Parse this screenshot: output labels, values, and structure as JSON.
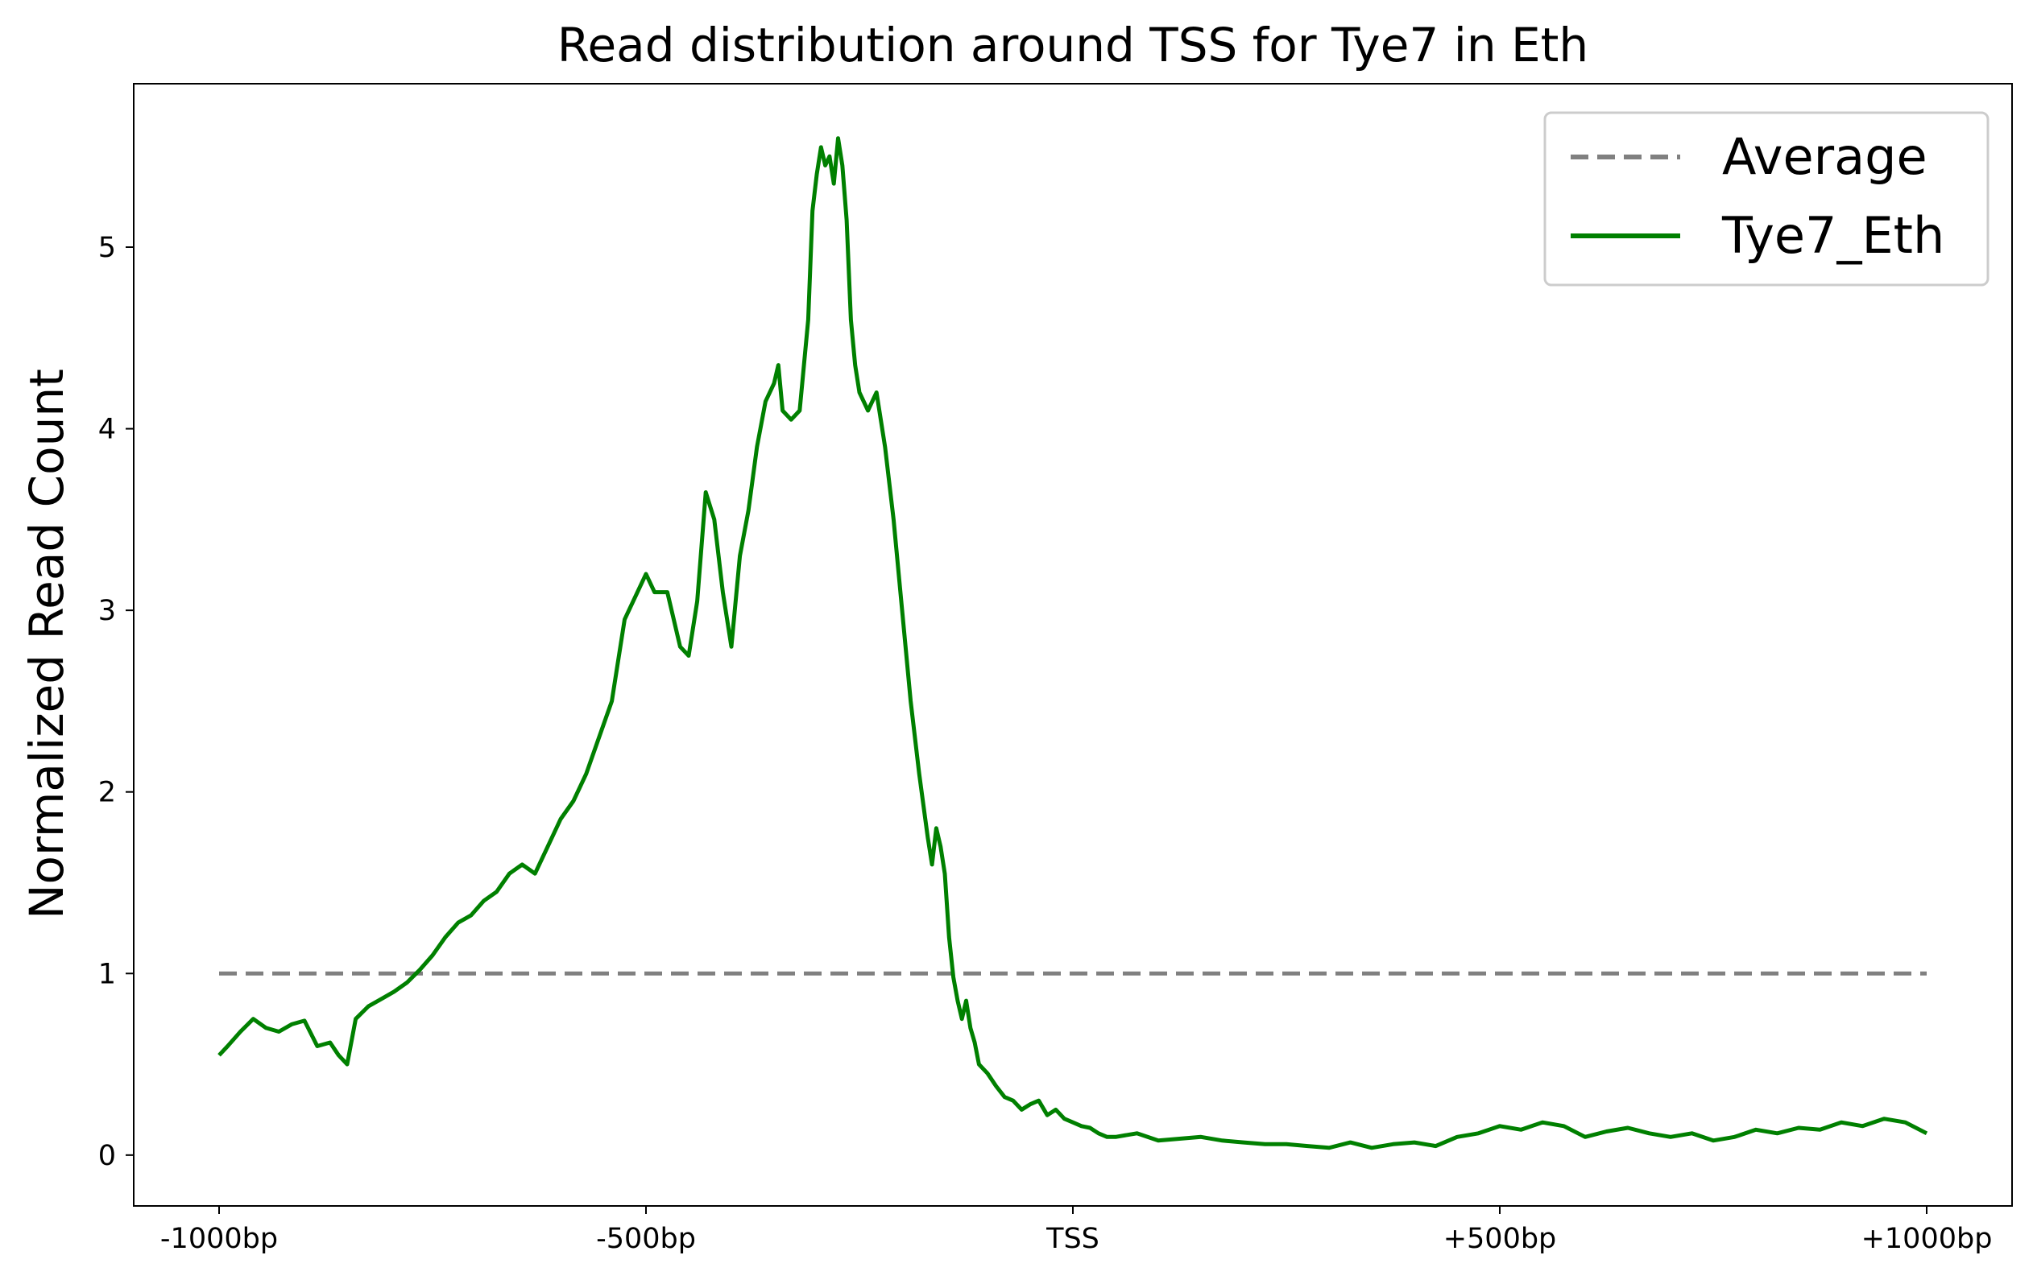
{
  "chart_data": {
    "type": "line",
    "title": "Read distribution around TSS for Tye7 in Eth",
    "xlabel": "",
    "ylabel": "Normalized Read Count",
    "xlim": [
      -1100,
      1100
    ],
    "ylim": [
      -0.28,
      5.9
    ],
    "x_ticks": [
      {
        "value": -1000,
        "label": "-1000bp"
      },
      {
        "value": -500,
        "label": "-500bp"
      },
      {
        "value": 0,
        "label": "TSS"
      },
      {
        "value": 500,
        "label": "+500bp"
      },
      {
        "value": 1000,
        "label": "+1000bp"
      }
    ],
    "y_ticks": [
      {
        "value": 0,
        "label": "0"
      },
      {
        "value": 1,
        "label": "1"
      },
      {
        "value": 2,
        "label": "2"
      },
      {
        "value": 3,
        "label": "3"
      },
      {
        "value": 4,
        "label": "4"
      },
      {
        "value": 5,
        "label": "5"
      }
    ],
    "grid": false,
    "legend_position": "top-right",
    "series": [
      {
        "name": "Average",
        "style": "dashed",
        "color": "#808080",
        "x": [
          -1000,
          1000
        ],
        "y": [
          1,
          1
        ]
      },
      {
        "name": "Tye7_Eth",
        "style": "solid",
        "color": "#008000",
        "x": [
          -1000,
          -990,
          -975,
          -960,
          -945,
          -930,
          -915,
          -900,
          -885,
          -870,
          -860,
          -850,
          -840,
          -825,
          -810,
          -795,
          -780,
          -765,
          -750,
          -735,
          -720,
          -705,
          -690,
          -675,
          -660,
          -645,
          -630,
          -615,
          -600,
          -585,
          -570,
          -555,
          -540,
          -525,
          -510,
          -500,
          -490,
          -475,
          -460,
          -450,
          -440,
          -430,
          -420,
          -410,
          -400,
          -390,
          -380,
          -370,
          -360,
          -350,
          -345,
          -340,
          -330,
          -320,
          -310,
          -305,
          -300,
          -295,
          -290,
          -285,
          -280,
          -275,
          -270,
          -265,
          -260,
          -255,
          -250,
          -240,
          -230,
          -220,
          -210,
          -200,
          -190,
          -180,
          -170,
          -165,
          -160,
          -155,
          -150,
          -145,
          -140,
          -135,
          -130,
          -125,
          -120,
          -115,
          -110,
          -100,
          -90,
          -80,
          -70,
          -60,
          -50,
          -40,
          -30,
          -20,
          -10,
          0,
          10,
          20,
          30,
          40,
          50,
          75,
          100,
          125,
          150,
          175,
          200,
          225,
          250,
          275,
          300,
          325,
          350,
          375,
          400,
          425,
          450,
          475,
          500,
          525,
          550,
          575,
          600,
          625,
          650,
          675,
          700,
          725,
          750,
          775,
          800,
          825,
          850,
          875,
          900,
          925,
          950,
          975,
          1000
        ],
        "y": [
          0.55,
          0.6,
          0.68,
          0.75,
          0.7,
          0.68,
          0.72,
          0.74,
          0.6,
          0.62,
          0.55,
          0.5,
          0.75,
          0.82,
          0.86,
          0.9,
          0.95,
          1.02,
          1.1,
          1.2,
          1.28,
          1.32,
          1.4,
          1.45,
          1.55,
          1.6,
          1.55,
          1.7,
          1.85,
          1.95,
          2.1,
          2.3,
          2.5,
          2.95,
          3.1,
          3.2,
          3.1,
          3.1,
          2.8,
          2.75,
          3.05,
          3.65,
          3.5,
          3.1,
          2.8,
          3.3,
          3.55,
          3.9,
          4.15,
          4.25,
          4.35,
          4.1,
          4.05,
          4.1,
          4.6,
          5.2,
          5.4,
          5.55,
          5.45,
          5.5,
          5.35,
          5.6,
          5.45,
          5.15,
          4.6,
          4.35,
          4.2,
          4.1,
          4.2,
          3.9,
          3.5,
          3.0,
          2.5,
          2.1,
          1.75,
          1.6,
          1.8,
          1.7,
          1.55,
          1.2,
          0.98,
          0.85,
          0.75,
          0.85,
          0.7,
          0.62,
          0.5,
          0.45,
          0.38,
          0.32,
          0.3,
          0.25,
          0.28,
          0.3,
          0.22,
          0.25,
          0.2,
          0.18,
          0.16,
          0.15,
          0.12,
          0.1,
          0.1,
          0.12,
          0.08,
          0.09,
          0.1,
          0.08,
          0.07,
          0.06,
          0.06,
          0.05,
          0.04,
          0.07,
          0.04,
          0.06,
          0.07,
          0.05,
          0.1,
          0.12,
          0.16,
          0.14,
          0.18,
          0.16,
          0.1,
          0.13,
          0.15,
          0.12,
          0.1,
          0.12,
          0.08,
          0.1,
          0.14,
          0.12,
          0.15,
          0.14,
          0.18,
          0.16,
          0.2,
          0.18,
          0.12
        ]
      }
    ]
  },
  "legend": {
    "items": [
      {
        "label": "Average",
        "color": "#808080",
        "style": "dashed"
      },
      {
        "label": "Tye7_Eth",
        "color": "#008000",
        "style": "solid"
      }
    ]
  }
}
